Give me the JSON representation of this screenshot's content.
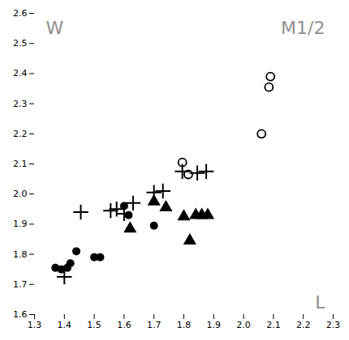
{
  "chart_data": {
    "type": "scatter",
    "title": "M1/2",
    "xlabel": "L",
    "ylabel": "W",
    "xlim": [
      1.3,
      2.3
    ],
    "ylim": [
      1.6,
      2.6
    ],
    "xticks": [
      1.3,
      1.4,
      1.5,
      1.6,
      1.7,
      1.8,
      1.9,
      {
        "value": 2.0,
        "label": "2.0"
      },
      2.1,
      2.2,
      2.3
    ],
    "yticks": [
      1.6,
      1.7,
      1.8,
      1.9,
      {
        "value": 2.0,
        "label": "2.0"
      },
      2.1,
      2.2,
      2.3,
      2.4,
      2.5,
      2.6
    ],
    "grid": false,
    "series": [
      {
        "marker": "plus",
        "color": "black",
        "x": [
          1.4,
          1.455,
          1.555,
          1.575,
          1.6,
          1.63,
          1.7,
          1.73,
          1.795,
          1.845,
          1.875
        ],
        "y": [
          1.725,
          1.94,
          1.945,
          1.95,
          1.935,
          1.97,
          2.005,
          2.01,
          2.075,
          2.07,
          2.075
        ]
      },
      {
        "marker": "open_circle",
        "color": "black",
        "x": [
          1.795,
          1.815,
          2.06,
          2.085,
          2.09
        ],
        "y": [
          2.105,
          2.065,
          2.2,
          2.355,
          2.39
        ]
      },
      {
        "marker": "circle",
        "color": "black",
        "x": [
          1.37,
          1.39,
          1.41,
          1.42,
          1.44,
          1.5,
          1.52,
          1.6,
          1.615,
          1.7
        ],
        "y": [
          1.755,
          1.75,
          1.755,
          1.77,
          1.81,
          1.79,
          1.79,
          1.96,
          1.93,
          1.895
        ]
      },
      {
        "marker": "triangle",
        "color": "black",
        "x": [
          1.62,
          1.7,
          1.74,
          1.8,
          1.82,
          1.84,
          1.86,
          1.88
        ],
        "y": [
          1.885,
          1.975,
          1.955,
          1.925,
          1.845,
          1.93,
          1.93,
          1.93
        ]
      }
    ]
  }
}
